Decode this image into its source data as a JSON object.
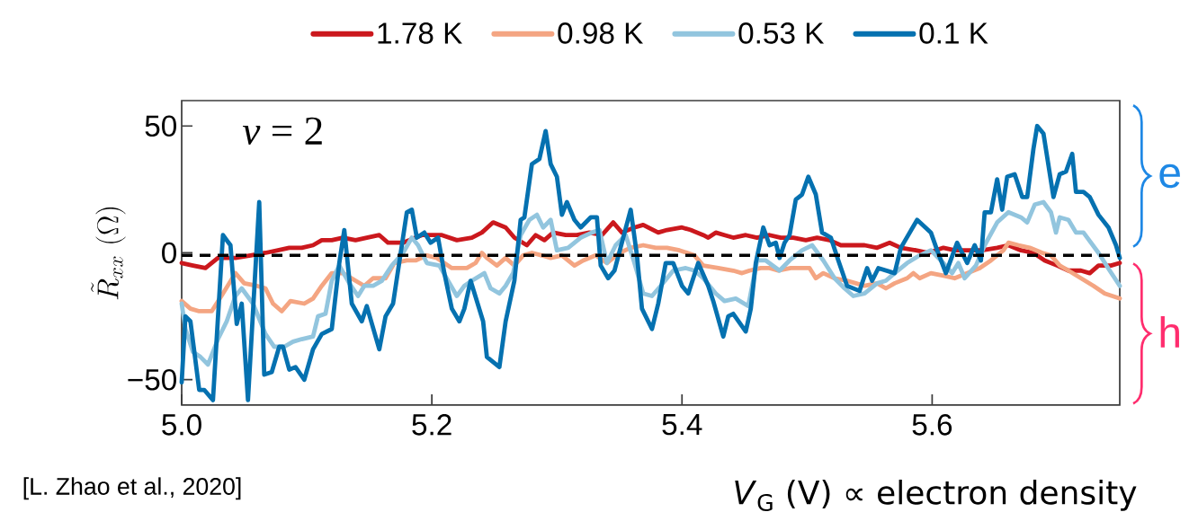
{
  "chart_data": {
    "type": "line",
    "xlabel": "*V*$_{G}$ (V) ∝ electron density",
    "ylabel": "\\tilde{R}_{xx}\\ (\\Omega)",
    "annotations": [
      "*ν* = 2",
      "e",
      "h",
      "[L. Zhao et al., 2020]"
    ],
    "xlim": [
      5.0,
      5.75
    ],
    "ylim": [
      -60,
      60
    ],
    "xticks": [
      {
        "value": 5.0,
        "label": "5.0"
      },
      5.2,
      5.4,
      5.6
    ],
    "yticks": [
      {
        "value": -50,
        "label": "−50"
      },
      0,
      50
    ],
    "legend": "top",
    "grid": false,
    "marker": "none",
    "line_style": "solid",
    "ref_lines": [
      {
        "axis": "y",
        "value": -1,
        "color": "#000000",
        "line_style": "dashed"
      }
    ],
    "series": [
      {
        "name": "1.78 K",
        "color": "#cb181d",
        "x": [
          5.0,
          5.009,
          5.019,
          5.029,
          5.043,
          5.055,
          5.067,
          5.077,
          5.086,
          5.096,
          5.105,
          5.112,
          5.12,
          5.129,
          5.139,
          5.148,
          5.158,
          5.165,
          5.177,
          5.187,
          5.192,
          5.201,
          5.208,
          5.22,
          5.232,
          5.24,
          5.249,
          5.259,
          5.266,
          5.276,
          5.283,
          5.29,
          5.297,
          5.307,
          5.316,
          5.326,
          5.336,
          5.345,
          5.352,
          5.362,
          5.369,
          5.381,
          5.388,
          5.4,
          5.407,
          5.417,
          5.421,
          5.427,
          5.434,
          5.441,
          5.451,
          5.46,
          5.47,
          5.479,
          5.489,
          5.499,
          5.508,
          5.518,
          5.527,
          5.537,
          5.546,
          5.556,
          5.566,
          5.575,
          5.587,
          5.597,
          5.609,
          5.618,
          5.628,
          5.64,
          5.652,
          5.661,
          5.671,
          5.681,
          5.69,
          5.7,
          5.709,
          5.719,
          5.726,
          5.733,
          5.743,
          5.75
        ],
        "values": [
          -4,
          -5,
          -6,
          -2,
          -2,
          -1,
          0,
          1,
          2,
          2,
          3,
          5,
          5,
          6,
          5,
          6,
          7,
          4,
          4,
          6,
          7,
          7,
          7,
          5,
          6,
          8,
          12,
          10,
          6,
          3,
          7,
          5,
          8,
          7,
          7,
          8,
          7,
          12,
          8,
          10,
          11,
          8,
          9,
          10,
          9,
          7,
          6,
          8,
          7,
          6,
          7,
          6,
          7,
          6,
          6,
          5,
          6,
          5,
          3,
          3,
          3,
          2,
          4,
          2,
          1,
          0,
          2,
          1,
          1,
          1,
          2,
          3,
          1,
          0,
          -3,
          -5,
          -7,
          -7,
          -8,
          -5,
          -5,
          -4
        ]
      },
      {
        "name": "0.98 K",
        "color": "#f4a582",
        "x": [
          5.0,
          5.007,
          5.014,
          5.024,
          5.033,
          5.043,
          5.05,
          5.06,
          5.067,
          5.073,
          5.08,
          5.087,
          5.098,
          5.105,
          5.112,
          5.12,
          5.129,
          5.139,
          5.146,
          5.153,
          5.163,
          5.17,
          5.18,
          5.187,
          5.196,
          5.204,
          5.216,
          5.222,
          5.228,
          5.235,
          5.24,
          5.244,
          5.252,
          5.259,
          5.266,
          5.273,
          5.28,
          5.288,
          5.295,
          5.304,
          5.314,
          5.321,
          5.331,
          5.34,
          5.35,
          5.359,
          5.369,
          5.379,
          5.388,
          5.398,
          5.41,
          5.417,
          5.429,
          5.441,
          5.448,
          5.454,
          5.463,
          5.47,
          5.477,
          5.487,
          5.496,
          5.502,
          5.507,
          5.513,
          5.522,
          5.532,
          5.539,
          5.546,
          5.556,
          5.563,
          5.57,
          5.58,
          5.585,
          5.59,
          5.599,
          5.609,
          5.618,
          5.628,
          5.638,
          5.647,
          5.657,
          5.661,
          5.669,
          5.678,
          5.688,
          5.695,
          5.702,
          5.709,
          5.719,
          5.729,
          5.738,
          5.75
        ],
        "values": [
          -19,
          -22,
          -23,
          -23,
          -16,
          -8,
          -12,
          -13,
          -14,
          -20,
          -23,
          -19,
          -20,
          -18,
          -13,
          -8,
          -8,
          -11,
          -13,
          -10,
          -10,
          -4,
          -3,
          -3,
          -1,
          -2,
          -6,
          -6,
          -6,
          -4,
          0,
          -2,
          -5,
          -2,
          -5,
          -1,
          0,
          -1,
          -2,
          -1,
          -5,
          -3,
          -1,
          -4,
          0,
          2,
          3,
          2,
          2,
          1,
          -1,
          -5,
          -6,
          -7,
          -8,
          -7,
          -6,
          -6,
          -7,
          -6,
          -6,
          -6,
          -10,
          -8,
          -10,
          -11,
          -12,
          -13,
          -12,
          -14,
          -12,
          -10,
          -8,
          -10,
          -8,
          -9,
          -10,
          -8,
          -6,
          -3,
          1,
          4,
          3,
          2,
          0,
          -1,
          -5,
          -7,
          -10,
          -13,
          -16,
          -18
        ]
      },
      {
        "name": "0.53 K",
        "color": "#92c5de",
        "x": [
          5.0,
          5.003,
          5.009,
          5.015,
          5.021,
          5.029,
          5.036,
          5.043,
          5.048,
          5.057,
          5.067,
          5.074,
          5.082,
          5.089,
          5.096,
          5.105,
          5.109,
          5.115,
          5.12,
          5.126,
          5.134,
          5.141,
          5.146,
          5.153,
          5.16,
          5.168,
          5.177,
          5.184,
          5.189,
          5.196,
          5.206,
          5.213,
          5.22,
          5.226,
          5.232,
          5.242,
          5.247,
          5.254,
          5.259,
          5.265,
          5.271,
          5.278,
          5.284,
          5.289,
          5.295,
          5.3,
          5.309,
          5.319,
          5.328,
          5.334,
          5.34,
          5.347,
          5.355,
          5.362,
          5.369,
          5.376,
          5.383,
          5.393,
          5.403,
          5.41,
          5.417,
          5.427,
          5.434,
          5.443,
          5.453,
          5.46,
          5.467,
          5.478,
          5.486,
          5.496,
          5.504,
          5.513,
          5.522,
          5.53,
          5.537,
          5.546,
          5.556,
          5.563,
          5.57,
          5.58,
          5.59,
          5.599,
          5.609,
          5.616,
          5.621,
          5.626,
          5.635,
          5.642,
          5.652,
          5.661,
          5.671,
          5.676,
          5.682,
          5.689,
          5.695,
          5.699,
          5.702,
          5.709,
          5.715,
          5.721,
          5.733,
          5.742,
          5.75
        ],
        "values": [
          -20,
          -30,
          -39,
          -41,
          -44,
          -34,
          -27,
          -17,
          -14,
          -20,
          -32,
          -37,
          -37,
          -35,
          -34,
          -33,
          -25,
          -24,
          -11,
          -5,
          -12,
          -17,
          -13,
          -13,
          -11,
          -5,
          0,
          6,
          3,
          -4,
          -5,
          -11,
          -17,
          -13,
          -11,
          -8,
          -14,
          -16,
          -13,
          -8,
          7,
          13,
          15,
          10,
          13,
          1,
          2,
          6,
          8,
          9,
          -4,
          3,
          7,
          -4,
          -16,
          -17,
          -13,
          -7,
          -6,
          -7,
          -10,
          -16,
          -19,
          -18,
          -21,
          -3,
          -3,
          -7,
          -3,
          1,
          3,
          -3,
          -10,
          -14,
          -17,
          -16,
          -12,
          -11,
          -8,
          -4,
          -1,
          1,
          -4,
          -8,
          -4,
          -10,
          -5,
          3,
          12,
          16,
          14,
          12,
          19,
          20,
          16,
          8,
          14,
          13,
          8,
          8,
          0,
          -7,
          -13
        ]
      },
      {
        "name": "0.1 K",
        "color": "#0571b0",
        "x": [
          5.0,
          5.003,
          5.007,
          5.014,
          5.018,
          5.025,
          5.033,
          5.039,
          5.044,
          5.048,
          5.053,
          5.062,
          5.066,
          5.072,
          5.078,
          5.081,
          5.086,
          5.091,
          5.098,
          5.105,
          5.112,
          5.12,
          5.126,
          5.13,
          5.136,
          5.144,
          5.148,
          5.158,
          5.163,
          5.169,
          5.18,
          5.184,
          5.188,
          5.194,
          5.199,
          5.205,
          5.21,
          5.216,
          5.222,
          5.226,
          5.231,
          5.241,
          5.244,
          5.254,
          5.259,
          5.266,
          5.271,
          5.274,
          5.28,
          5.286,
          5.291,
          5.295,
          5.3,
          5.304,
          5.308,
          5.314,
          5.319,
          5.327,
          5.332,
          5.335,
          5.341,
          5.346,
          5.353,
          5.359,
          5.364,
          5.368,
          5.376,
          5.381,
          5.387,
          5.393,
          5.4,
          5.405,
          5.413,
          5.421,
          5.425,
          5.433,
          5.437,
          5.441,
          5.451,
          5.455,
          5.459,
          5.465,
          5.47,
          5.475,
          5.478,
          5.482,
          5.486,
          5.491,
          5.496,
          5.501,
          5.507,
          5.512,
          5.519,
          5.525,
          5.532,
          5.542,
          5.548,
          5.552,
          5.557,
          5.57,
          5.575,
          5.588,
          5.599,
          5.604,
          5.611,
          5.62,
          5.628,
          5.634,
          5.639,
          5.642,
          5.647,
          5.652,
          5.656,
          5.66,
          5.666,
          5.672,
          5.676,
          5.681,
          5.684,
          5.689,
          5.697,
          5.702,
          5.707,
          5.712,
          5.715,
          5.721,
          5.726,
          5.733,
          5.741,
          5.747,
          5.75
        ],
        "values": [
          -51,
          -25,
          -27,
          -54,
          -54,
          -58,
          7,
          3,
          -28,
          -20,
          -58,
          20,
          -48,
          -47,
          -37,
          -37,
          -46,
          -45,
          -50,
          -38,
          -32,
          -30,
          -4,
          9,
          -20,
          -27,
          -21,
          -38,
          -25,
          -20,
          16,
          17,
          6,
          8,
          4,
          6,
          -8,
          -22,
          -27,
          -22,
          -11,
          -27,
          -41,
          -45,
          -27,
          -11,
          13,
          14,
          35,
          37,
          48,
          35,
          30,
          15,
          20,
          13,
          10,
          14,
          14,
          -5,
          -10,
          -7,
          6,
          17,
          -1,
          -22,
          -30,
          -20,
          -4,
          -4,
          -13,
          -16,
          -4,
          -13,
          -19,
          -33,
          -25,
          -24,
          -31,
          -22,
          -4,
          10,
          3,
          4,
          -2,
          4,
          7,
          21,
          23,
          30,
          23,
          8,
          6,
          -3,
          -13,
          -15,
          -6,
          -11,
          -6,
          -8,
          2,
          13,
          8,
          1,
          -8,
          4,
          -4,
          3,
          -3,
          16,
          16,
          29,
          17,
          30,
          31,
          22,
          22,
          41,
          50,
          47,
          22,
          31,
          32,
          39,
          24,
          24,
          22,
          15,
          10,
          3,
          -2
        ]
      }
    ]
  }
}
